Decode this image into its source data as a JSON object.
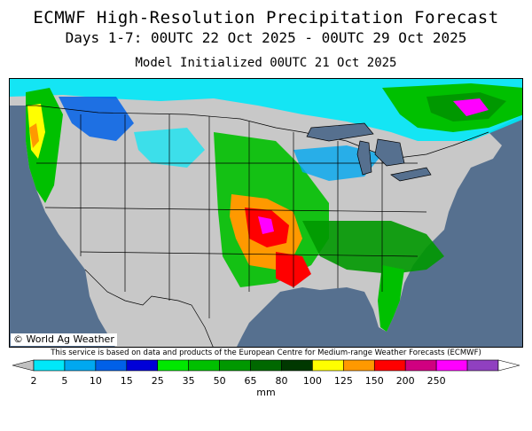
{
  "header": {
    "title": "ECMWF High-Resolution Precipitation Forecast",
    "subtitle": "Days 1-7: 00UTC 22 Oct 2025 - 00UTC 29 Oct 2025",
    "initialized": "Model Initialized 00UTC 21 Oct 2025"
  },
  "map": {
    "credit": "© World Ag Weather",
    "colors": {
      "ocean": "#56708f",
      "land_dry": "#c8c8c8",
      "borders": "#000000"
    }
  },
  "disclaimer": "This service is based on data and products of the European Centre for Medium-range Weather Forecasts (ECMWF)",
  "legend": {
    "units": "mm",
    "ticks": [
      "2",
      "5",
      "10",
      "15",
      "25",
      "35",
      "50",
      "65",
      "80",
      "100",
      "125",
      "150",
      "200",
      "250"
    ],
    "colors": [
      "#00e8f8",
      "#00a8f0",
      "#0060e8",
      "#0000d8",
      "#00e800",
      "#00c000",
      "#009800",
      "#006800",
      "#003800",
      "#ffff00",
      "#ff9900",
      "#ff0000",
      "#d00080",
      "#ff00ff",
      "#9040c0"
    ]
  }
}
